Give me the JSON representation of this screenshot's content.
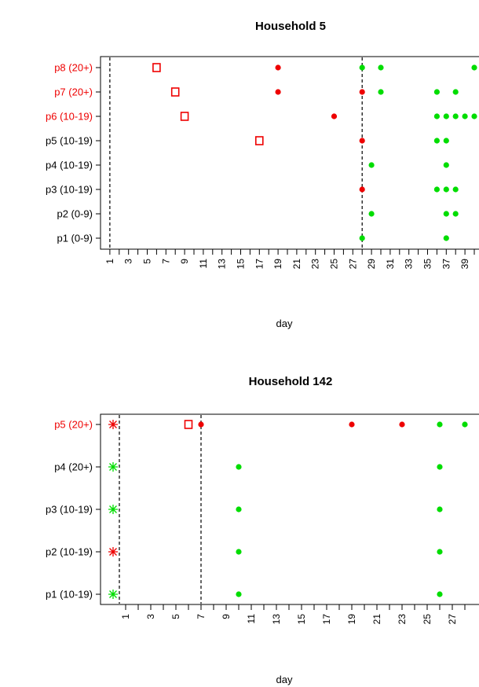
{
  "chart_data": [
    {
      "type": "scatter",
      "title": "Household 5",
      "xlabel": "day",
      "ylabel": "",
      "xlim": [
        0,
        40
      ],
      "xticks": [
        1,
        2,
        3,
        4,
        5,
        6,
        7,
        8,
        9,
        10,
        11,
        12,
        13,
        14,
        15,
        16,
        17,
        18,
        19,
        20,
        21,
        22,
        23,
        24,
        25,
        26,
        27,
        28,
        29,
        30,
        31,
        32,
        33,
        34,
        35,
        36,
        37,
        38,
        39,
        40
      ],
      "xtick_labels": [
        1,
        3,
        5,
        7,
        9,
        11,
        13,
        15,
        17,
        19,
        21,
        23,
        25,
        27,
        29,
        31,
        33,
        35,
        37,
        39
      ],
      "y_labels": [
        "p8 (20+)",
        "p7 (20+)",
        "p6 (10-19)",
        "p5 (10-19)",
        "p4 (10-19)",
        "p3 (10-19)",
        "p2 (0-9)",
        "p1 (0-9)"
      ],
      "y_label_colors": [
        "#ee0000",
        "#ee0000",
        "#ee0000",
        "#000000",
        "#000000",
        "#000000",
        "#000000",
        "#000000"
      ],
      "vlines": [
        1,
        28
      ],
      "series": [
        {
          "marker": "square-open",
          "color": "#ee0000",
          "points": [
            [
              6,
              "p8 (20+)"
            ],
            [
              8,
              "p7 (20+)"
            ],
            [
              9,
              "p6 (10-19)"
            ],
            [
              17,
              "p5 (10-19)"
            ]
          ]
        },
        {
          "marker": "dot",
          "color": "#ee0000",
          "points": [
            [
              19,
              "p8 (20+)"
            ],
            [
              19,
              "p7 (20+)"
            ],
            [
              28,
              "p7 (20+)"
            ],
            [
              25,
              "p6 (10-19)"
            ],
            [
              28,
              "p5 (10-19)"
            ],
            [
              28,
              "p3 (10-19)"
            ]
          ]
        },
        {
          "marker": "dot",
          "color": "#00dd00",
          "points": [
            [
              28,
              "p8 (20+)"
            ],
            [
              30,
              "p8 (20+)"
            ],
            [
              40,
              "p8 (20+)"
            ],
            [
              30,
              "p7 (20+)"
            ],
            [
              36,
              "p7 (20+)"
            ],
            [
              38,
              "p7 (20+)"
            ],
            [
              36,
              "p6 (10-19)"
            ],
            [
              37,
              "p6 (10-19)"
            ],
            [
              38,
              "p6 (10-19)"
            ],
            [
              39,
              "p6 (10-19)"
            ],
            [
              40,
              "p6 (10-19)"
            ],
            [
              36,
              "p5 (10-19)"
            ],
            [
              37,
              "p5 (10-19)"
            ],
            [
              29,
              "p4 (10-19)"
            ],
            [
              37,
              "p4 (10-19)"
            ],
            [
              36,
              "p3 (10-19)"
            ],
            [
              37,
              "p3 (10-19)"
            ],
            [
              38,
              "p3 (10-19)"
            ],
            [
              29,
              "p2 (0-9)"
            ],
            [
              37,
              "p2 (0-9)"
            ],
            [
              38,
              "p2 (0-9)"
            ],
            [
              28,
              "p1 (0-9)"
            ],
            [
              37,
              "p1 (0-9)"
            ]
          ]
        }
      ]
    },
    {
      "type": "scatter",
      "title": "Household 142",
      "xlabel": "day",
      "ylabel": "",
      "xlim": [
        -1,
        29
      ],
      "xticks": [
        1,
        2,
        3,
        4,
        5,
        6,
        7,
        8,
        9,
        10,
        11,
        12,
        13,
        14,
        15,
        16,
        17,
        18,
        19,
        20,
        21,
        22,
        23,
        24,
        25,
        26,
        27,
        28
      ],
      "xtick_labels": [
        1,
        3,
        5,
        7,
        9,
        11,
        13,
        15,
        17,
        19,
        21,
        23,
        25,
        27
      ],
      "y_labels": [
        "p5 (20+)",
        "p4 (20+)",
        "p3 (10-19)",
        "p2 (10-19)",
        "p1 (10-19)"
      ],
      "y_label_colors": [
        "#ee0000",
        "#000000",
        "#000000",
        "#000000",
        "#000000"
      ],
      "vlines": [
        0.5,
        7
      ],
      "series": [
        {
          "marker": "asterisk",
          "color": "#ee0000",
          "points": [
            [
              0,
              "p5 (20+)"
            ],
            [
              0,
              "p2 (10-19)"
            ]
          ]
        },
        {
          "marker": "asterisk",
          "color": "#00dd00",
          "points": [
            [
              0,
              "p4 (20+)"
            ],
            [
              0,
              "p3 (10-19)"
            ],
            [
              0,
              "p1 (10-19)"
            ]
          ]
        },
        {
          "marker": "square-open",
          "color": "#ee0000",
          "points": [
            [
              6,
              "p5 (20+)"
            ]
          ]
        },
        {
          "marker": "dot",
          "color": "#ee0000",
          "points": [
            [
              7,
              "p5 (20+)"
            ],
            [
              19,
              "p5 (20+)"
            ],
            [
              23,
              "p5 (20+)"
            ]
          ]
        },
        {
          "marker": "dot",
          "color": "#00dd00",
          "points": [
            [
              26,
              "p5 (20+)"
            ],
            [
              28,
              "p5 (20+)"
            ],
            [
              10,
              "p4 (20+)"
            ],
            [
              26,
              "p4 (20+)"
            ],
            [
              10,
              "p3 (10-19)"
            ],
            [
              26,
              "p3 (10-19)"
            ],
            [
              10,
              "p2 (10-19)"
            ],
            [
              26,
              "p2 (10-19)"
            ],
            [
              10,
              "p1 (10-19)"
            ],
            [
              26,
              "p1 (10-19)"
            ]
          ]
        }
      ]
    }
  ]
}
